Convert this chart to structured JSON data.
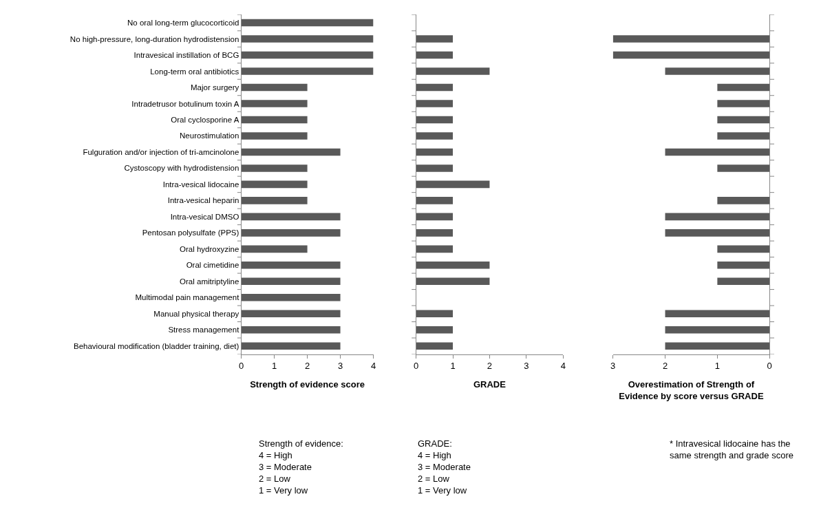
{
  "chart_data": [
    {
      "type": "bar",
      "orientation": "horizontal",
      "categories": [
        "No oral long-term glucocorticoid",
        "No high-pressure, long-duration hydrodistension",
        "Intravesical instillation of BCG",
        "Long-term oral antibiotics",
        "Major surgery",
        "Intradetrusor botulinum toxin A",
        "Oral cyclosporine A",
        "Neurostimulation",
        "Fulguration and/or injection of tri-amcinolone",
        "Cystoscopy with hydrodistension",
        "Intra-vesical lidocaine",
        "Intra-vesical heparin",
        "Intra-vesical DMSO",
        "Pentosan polysulfate (PPS)",
        "Oral hydroxyzine",
        "Oral cimetidine",
        "Oral amitriptyline",
        "Multimodal pain management",
        "Manual physical therapy",
        "Stress management",
        "Behavioural modification (bladder training, diet)"
      ],
      "values": [
        4,
        4,
        4,
        4,
        2,
        2,
        2,
        2,
        3,
        2,
        2,
        2,
        3,
        3,
        2,
        3,
        3,
        3,
        3,
        3,
        3
      ],
      "color": "#595959",
      "xlim": [
        0,
        4
      ],
      "xticks": [
        0,
        1,
        2,
        3,
        4
      ],
      "xlabel": "Strength of evidence score",
      "annotations": [
        "Strength of evidence:\n4 = High\n3 = Moderate\n2 = Low\n1 = Very low"
      ]
    },
    {
      "type": "bar",
      "orientation": "horizontal",
      "categories": [
        "No oral long-term glucocorticoid",
        "No high-pressure, long-duration hydrodistension",
        "Intravesical instillation of BCG",
        "Long-term oral antibiotics",
        "Major surgery",
        "Intradetrusor botulinum toxin A",
        "Oral cyclosporine A",
        "Neurostimulation",
        "Fulguration and/or injection of tri-amcinolone",
        "Cystoscopy with hydrodistension",
        "Intra-vesical lidocaine",
        "Intra-vesical heparin",
        "Intra-vesical DMSO",
        "Pentosan polysulfate (PPS)",
        "Oral hydroxyzine",
        "Oral cimetidine",
        "Oral amitriptyline",
        "Multimodal pain management",
        "Manual physical therapy",
        "Stress management",
        "Behavioural modification (bladder training, diet)"
      ],
      "values": [
        null,
        1,
        1,
        2,
        1,
        1,
        1,
        1,
        1,
        1,
        2,
        1,
        1,
        1,
        1,
        2,
        2,
        null,
        1,
        1,
        1
      ],
      "color": "#595959",
      "xlim": [
        0,
        4
      ],
      "xticks": [
        0,
        1,
        2,
        3,
        4
      ],
      "xlabel": "GRADE",
      "tick_labels": "x",
      "annotations": [
        "GRADE:\n4 = High\n3 = Moderate\n2 = Low\n1 = Very low"
      ]
    },
    {
      "type": "bar",
      "orientation": "horizontal",
      "categories": [
        "No oral long-term glucocorticoid",
        "No high-pressure, long-duration hydrodistension",
        "Intravesical instillation of BCG",
        "Long-term oral antibiotics",
        "Major surgery",
        "Intradetrusor botulinum toxin A",
        "Oral cyclosporine A",
        "Neurostimulation",
        "Fulguration and/or injection of tri-amcinolone",
        "Cystoscopy with hydrodistension",
        "Intra-vesical lidocaine",
        "Intra-vesical heparin",
        "Intra-vesical DMSO",
        "Pentosan polysulfate (PPS)",
        "Oral hydroxyzine",
        "Oral cimetidine",
        "Oral amitriptyline",
        "Multimodal pain management",
        "Manual physical therapy",
        "Stress management",
        "Behavioural modification (bladder training, diet)"
      ],
      "values": [
        null,
        3,
        3,
        2,
        1,
        1,
        1,
        1,
        2,
        1,
        0,
        1,
        2,
        2,
        1,
        1,
        1,
        null,
        2,
        2,
        2
      ],
      "color": "#595959",
      "xlim": [
        3,
        0
      ],
      "xticks": [
        3,
        2,
        1,
        0
      ],
      "xlabel": "Overestimation of Strength of\nEvidence by score versus GRADE",
      "tick_labels": "x",
      "annotations": [
        "* Intravesical lidocaine has the\nsame strength and grade score"
      ]
    }
  ]
}
